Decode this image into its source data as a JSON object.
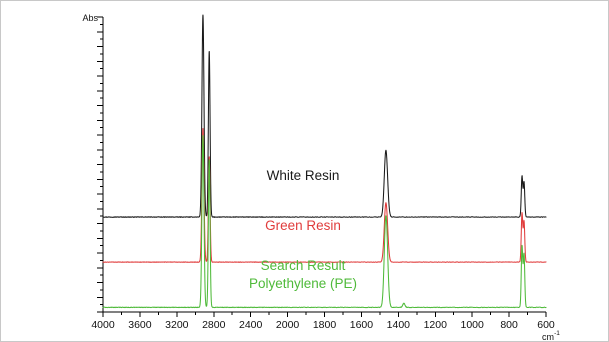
{
  "chart_data": {
    "type": "line",
    "xlabel": "cm",
    "xlabel_superscript": "-1",
    "ylabel": "Abs",
    "x_reversed": true,
    "xlim": [
      4000,
      600
    ],
    "xticks": [
      4000,
      3600,
      3200,
      2800,
      2400,
      2000,
      1800,
      1600,
      1400,
      1200,
      1000,
      800,
      600
    ],
    "y_ticks": {
      "major_count": 20,
      "minor_count": 40
    },
    "grid": false,
    "series": [
      {
        "name": "White Resin",
        "color": "#1a1a1a",
        "label_lines": [
          "White Resin"
        ],
        "baseline": 0.47,
        "noise": 0.0028,
        "peaks": [
          {
            "x": 2917,
            "height": 1.0,
            "width": 11
          },
          {
            "x": 2849,
            "height": 0.82,
            "width": 9
          },
          {
            "x": 1470,
            "height": 0.23,
            "width": 8
          },
          {
            "x": 1462,
            "height": 0.14,
            "width": 8
          },
          {
            "x": 730,
            "height": 0.2,
            "width": 4
          },
          {
            "x": 719,
            "height": 0.17,
            "width": 4
          }
        ]
      },
      {
        "name": "Green Resin",
        "color": "#e03c3c",
        "label_lines": [
          "Green Resin"
        ],
        "baseline": 0.247,
        "noise": 0.0022,
        "peaks": [
          {
            "x": 2917,
            "height": 0.66,
            "width": 11
          },
          {
            "x": 2849,
            "height": 0.52,
            "width": 9
          },
          {
            "x": 1470,
            "height": 0.2,
            "width": 8
          },
          {
            "x": 1462,
            "height": 0.13,
            "width": 8
          },
          {
            "x": 730,
            "height": 0.24,
            "width": 4
          },
          {
            "x": 719,
            "height": 0.2,
            "width": 4
          }
        ]
      },
      {
        "name": "Search Result Polyethylene (PE)",
        "color": "#4fba3a",
        "label_lines": [
          "Search Result",
          "Polyethylene (PE)"
        ],
        "baseline": 0.023,
        "noise": 0.0025,
        "peaks": [
          {
            "x": 2917,
            "height": 0.85,
            "width": 11
          },
          {
            "x": 2849,
            "height": 0.73,
            "width": 9
          },
          {
            "x": 1470,
            "height": 0.31,
            "width": 8
          },
          {
            "x": 1462,
            "height": 0.2,
            "width": 8
          },
          {
            "x": 1370,
            "height": 0.02,
            "width": 6
          },
          {
            "x": 730,
            "height": 0.3,
            "width": 4
          },
          {
            "x": 719,
            "height": 0.26,
            "width": 4
          }
        ]
      }
    ]
  }
}
